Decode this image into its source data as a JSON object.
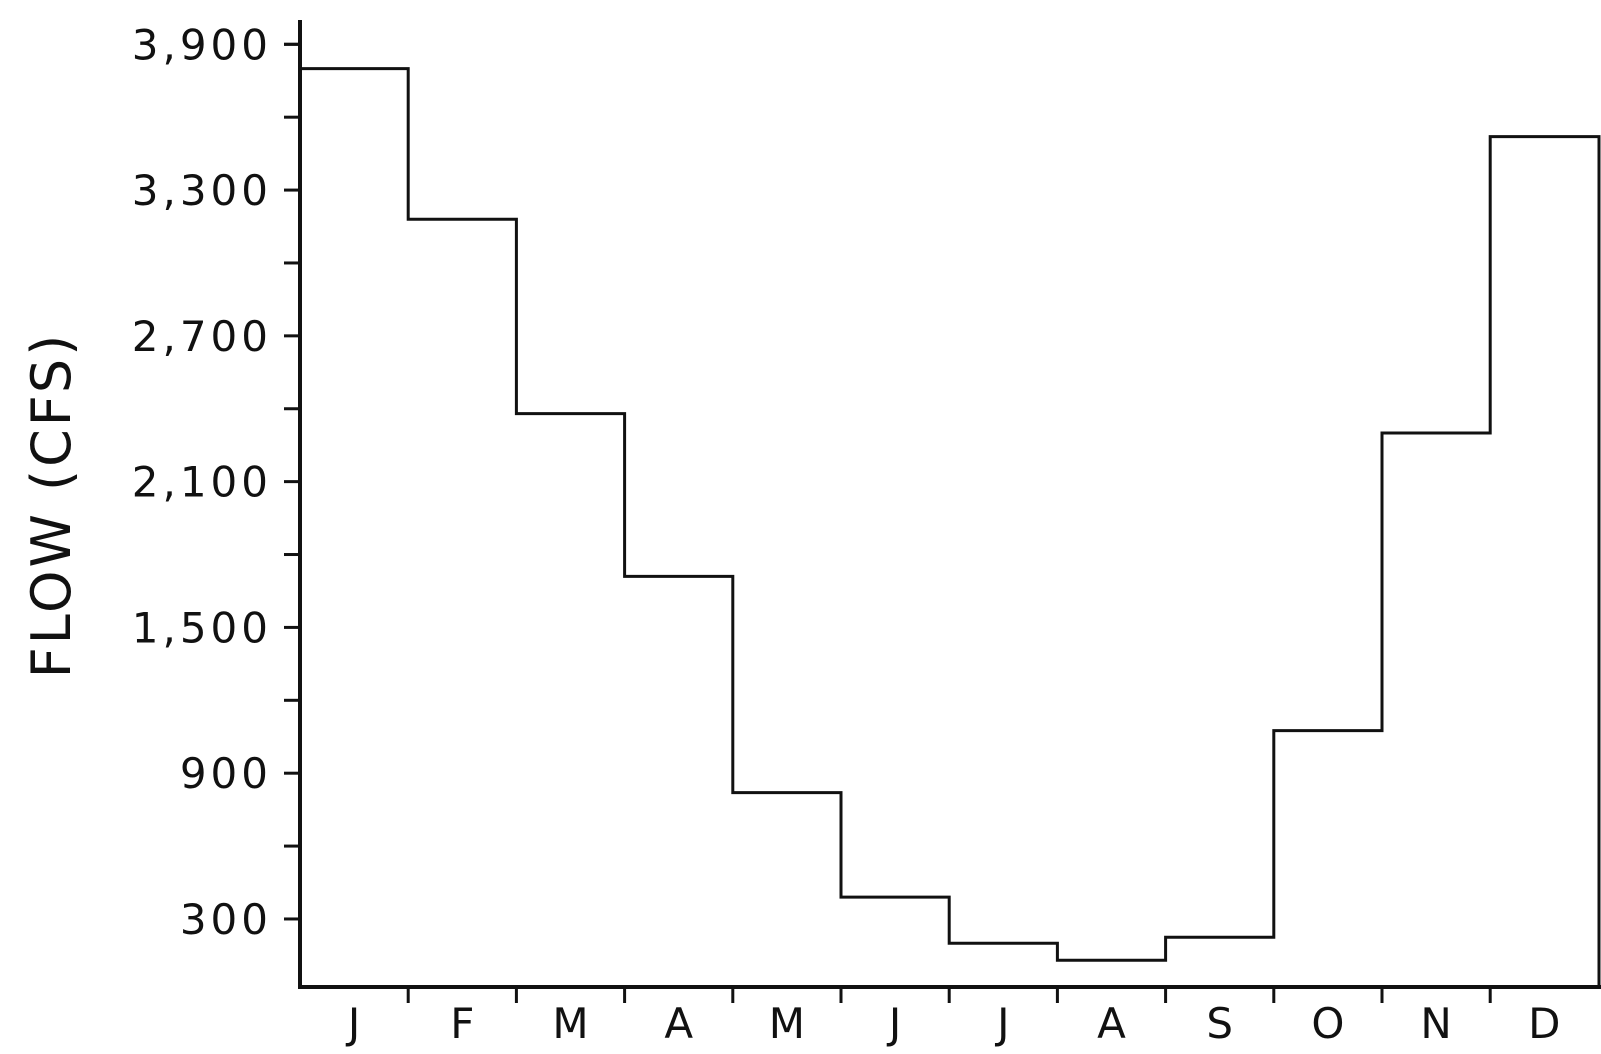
{
  "chart_data": {
    "type": "line",
    "step": true,
    "title": "",
    "xlabel": "",
    "ylabel": "FLOW (CFS)",
    "categories": [
      "J",
      "F",
      "M",
      "A",
      "M",
      "J",
      "J",
      "A",
      "S",
      "O",
      "N",
      "D"
    ],
    "values": [
      3800,
      3180,
      2380,
      1710,
      820,
      390,
      200,
      130,
      225,
      1075,
      2300,
      3520
    ],
    "y_tick_labels": [
      "3,900",
      "3,300",
      "2,700",
      "2,100",
      "1,500",
      "900",
      "300"
    ],
    "y_tick_values": [
      3900,
      3300,
      2700,
      2100,
      1500,
      900,
      300
    ],
    "ylim": [
      20,
      4000
    ],
    "grid": false,
    "legend": "none",
    "line_color": "#111111"
  }
}
